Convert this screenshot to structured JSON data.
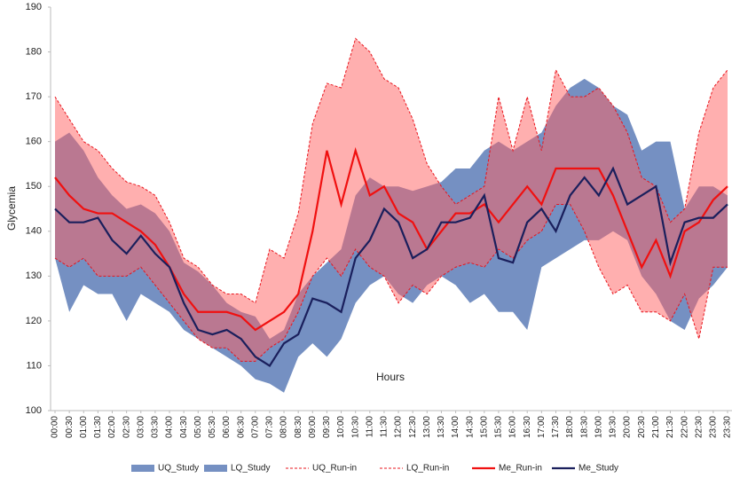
{
  "chart_data": {
    "type": "line",
    "xlabel": "Hours",
    "ylabel": "Glycemia",
    "categories": [
      "00:00",
      "00:30",
      "01:00",
      "01:30",
      "02:00",
      "02:30",
      "03:00",
      "03:30",
      "04:00",
      "04:30",
      "05:00",
      "05:30",
      "06:00",
      "06:30",
      "07:00",
      "07:30",
      "08:00",
      "08:30",
      "09:00",
      "09:30",
      "10:00",
      "10:30",
      "11:00",
      "11:30",
      "12:00",
      "12:30",
      "13:00",
      "13:30",
      "14:00",
      "14:30",
      "15:00",
      "15:30",
      "16:00",
      "16:30",
      "17:00",
      "17:30",
      "18:00",
      "18:30",
      "19:00",
      "19:30",
      "20:00",
      "20:30",
      "21:00",
      "21:30",
      "22:00",
      "22:30",
      "23:00",
      "23:30"
    ],
    "ylim": [
      100,
      190
    ],
    "yticks": [
      100,
      110,
      120,
      130,
      140,
      150,
      160,
      170,
      180,
      190
    ],
    "legend": "bottom",
    "series": [
      {
        "name": "UQ_Study",
        "color": "#7590c2",
        "style": "band",
        "values": [
          160,
          162,
          158,
          152,
          148,
          145,
          146,
          144,
          140,
          133,
          131,
          128,
          124,
          122,
          121,
          116,
          118,
          126,
          130,
          133,
          136,
          148,
          152,
          150,
          150,
          149,
          150,
          151,
          154,
          154,
          158,
          160,
          158,
          160,
          162,
          168,
          172,
          174,
          172,
          168,
          166,
          158,
          160,
          160,
          145,
          150,
          150,
          148
        ]
      },
      {
        "name": "LQ_Study",
        "color": "#7590c2",
        "style": "band",
        "values": [
          134,
          122,
          128,
          126,
          126,
          120,
          126,
          124,
          122,
          118,
          116,
          114,
          112,
          110,
          107,
          106,
          104,
          112,
          115,
          112,
          116,
          124,
          128,
          130,
          126,
          124,
          128,
          130,
          128,
          124,
          126,
          122,
          122,
          118,
          132,
          134,
          136,
          138,
          138,
          140,
          138,
          130,
          126,
          120,
          118,
          125,
          128,
          132
        ]
      },
      {
        "name": "UQ_Run-in",
        "color": "#e8141c",
        "fill": "#ff6060",
        "style": "dashed",
        "values": [
          170,
          165,
          160,
          158,
          154,
          151,
          150,
          148,
          142,
          134,
          132,
          128,
          126,
          126,
          124,
          136,
          134,
          144,
          164,
          173,
          172,
          183,
          180,
          174,
          172,
          165,
          155,
          150,
          146,
          148,
          150,
          170,
          158,
          170,
          158,
          176,
          170,
          170,
          172,
          168,
          162,
          152,
          150,
          142,
          145,
          162,
          172,
          176
        ]
      },
      {
        "name": "LQ_Run-in",
        "color": "#e8141c",
        "style": "dashed",
        "values": [
          134,
          132,
          134,
          130,
          130,
          130,
          132,
          128,
          124,
          120,
          116,
          114,
          114,
          111,
          111,
          114,
          116,
          122,
          130,
          134,
          130,
          136,
          132,
          130,
          124,
          128,
          126,
          130,
          132,
          133,
          132,
          136,
          134,
          138,
          140,
          146,
          146,
          140,
          132,
          126,
          128,
          122,
          122,
          120,
          126,
          116,
          132,
          132
        ]
      },
      {
        "name": "Me_Run-in",
        "color": "#f01010",
        "style": "solid",
        "values": [
          152,
          148,
          145,
          144,
          144,
          142,
          140,
          137,
          132,
          126,
          122,
          122,
          122,
          121,
          118,
          120,
          122,
          126,
          140,
          158,
          146,
          158,
          148,
          150,
          144,
          142,
          136,
          140,
          144,
          144,
          146,
          142,
          146,
          150,
          146,
          154,
          154,
          154,
          154,
          148,
          140,
          132,
          138,
          130,
          140,
          142,
          147,
          150
        ]
      },
      {
        "name": "Me_Study",
        "color": "#1a1f5c",
        "style": "solid",
        "values": [
          145,
          142,
          142,
          143,
          138,
          135,
          139,
          135,
          132,
          124,
          118,
          117,
          118,
          116,
          112,
          110,
          115,
          117,
          125,
          124,
          122,
          134,
          138,
          145,
          142,
          134,
          136,
          142,
          142,
          143,
          148,
          134,
          133,
          142,
          145,
          140,
          148,
          152,
          148,
          154,
          146,
          148,
          150,
          133,
          142,
          143,
          143,
          146
        ]
      }
    ]
  }
}
